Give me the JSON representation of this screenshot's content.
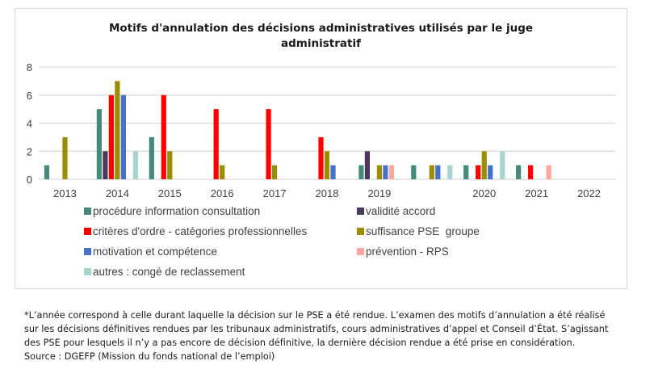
{
  "chart_data": {
    "type": "bar",
    "title": "Motifs d'annulation des décisions administratives utilisés par le juge administratif",
    "title_lines": [
      "Motifs d'annulation des décisions administratives utilisés par le juge",
      "administratif"
    ],
    "xlabel": "",
    "ylabel": "",
    "ylim": [
      0,
      8
    ],
    "yticks": [
      0,
      2,
      4,
      6,
      8
    ],
    "grid": true,
    "legend_position": "bottom",
    "categories": [
      "2013",
      "2014",
      "2015",
      "2016",
      "2017",
      "2018",
      "2019",
      "",
      "2020",
      "2021",
      "2022"
    ],
    "series": [
      {
        "name": "procédure information consultation",
        "color": "#438A7A",
        "values": [
          1,
          5,
          3,
          0,
          0,
          0,
          1,
          1,
          1,
          1,
          0
        ]
      },
      {
        "name": "validité accord",
        "color": "#4E3660",
        "values": [
          0,
          2,
          0,
          0,
          0,
          0,
          2,
          0,
          0,
          0,
          0
        ]
      },
      {
        "name": "critères d'ordre - catégories professionnelles",
        "color": "#FF0000",
        "values": [
          0,
          6,
          6,
          5,
          5,
          3,
          0,
          0,
          1,
          1,
          0
        ]
      },
      {
        "name": "suffisance PSE  groupe",
        "color": "#9C8C00",
        "values": [
          3,
          7,
          2,
          1,
          1,
          2,
          1,
          1,
          2,
          0,
          0
        ]
      },
      {
        "name": "motivation et compétence",
        "color": "#4472C4",
        "values": [
          0,
          6,
          0,
          0,
          0,
          1,
          1,
          1,
          1,
          0,
          0
        ]
      },
      {
        "name": "prévention - RPS",
        "color": "#FFA69E",
        "values": [
          0,
          0,
          0,
          0,
          0,
          0,
          1,
          0,
          0,
          1,
          0
        ]
      },
      {
        "name": "autres : congé de reclassement",
        "color": "#A9D5CF",
        "values": [
          0,
          2,
          0,
          0,
          0,
          0,
          0,
          1,
          2,
          0,
          0
        ]
      }
    ]
  },
  "legend_order": [
    0,
    1,
    2,
    3,
    4,
    5,
    6
  ],
  "footnote": {
    "lines": [
      "*L’année correspond à celle durant laquelle la décision sur le PSE a été rendue. L’examen des motifs d’annulation a été réalisé",
      "sur les décisions définitives rendues par les tribunaux administratifs, cours administratives d’appel et Conseil d’État. S’agissant",
      "des PSE pour lesquels il n’y a pas encore de décision définitive, la dernière décision rendue a été prise en considération.",
      "Source : DGEFP (Mission du fonds national de l’emploi)"
    ]
  }
}
